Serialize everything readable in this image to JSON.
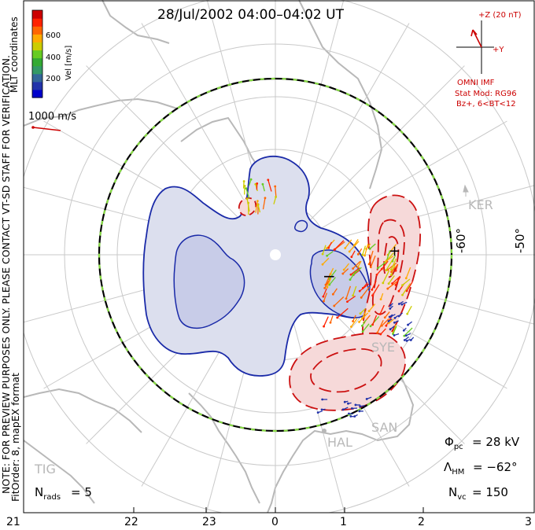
{
  "chart_data": {
    "type": "polar_convection_map",
    "title": "28/Jul/2002 04:00–04:02 UT",
    "side_notes": {
      "coordinates": "MLT coordinates",
      "preview": "NOTE: FOR PREVIEW PURPOSES ONLY. PLEASE CONTACT VT-SD STAFF FOR VERIFICATION.",
      "fit": "FitOrder: 8, mapEX format"
    },
    "colorbar": {
      "label": "Vel [m/s]",
      "ticks": [
        "600",
        "400",
        "200"
      ],
      "colors": [
        "#0000cc",
        "#2233aa",
        "#336699",
        "#339966",
        "#33aa33",
        "#66cc22",
        "#cccc00",
        "#ffaa00",
        "#ff6600",
        "#ff2200",
        "#cc0000"
      ]
    },
    "scale_vector": {
      "label": "1000 m/s",
      "color": "#cc0000"
    },
    "imf": {
      "z_label": "+Z (20 nT)",
      "y_label": "+Y",
      "source": "OMNI IMF",
      "model": "Stat Mod: RG96",
      "condition": "Bz+, 6<BT<12",
      "color": "#cc0000"
    },
    "latitude_labels": [
      "-60°",
      "-50°"
    ],
    "mlt_ticks": [
      "21",
      "22",
      "23",
      "0",
      "1",
      "2",
      "3"
    ],
    "stations": [
      "KER",
      "SYE",
      "HAL",
      "SAN",
      "TIG"
    ],
    "stats": {
      "phi_pc": {
        "symbol": "Φ",
        "sub": "pc",
        "value": "= 28 kV"
      },
      "lambda_hm": {
        "symbol": "Λ",
        "sub": "HM",
        "value": "= −62°"
      },
      "n_vc": {
        "symbol": "N",
        "sub": "vc",
        "value": "= 150"
      },
      "n_rads": {
        "symbol": "N",
        "sub": "rads",
        "value": "= 5"
      }
    },
    "cell_signs": [
      "−",
      "+"
    ],
    "colors": {
      "negative_contour": "#1a2aa8",
      "negative_fill": "#dcdfee",
      "negative_fill_inner": "#c8cce8",
      "positive_contour": "#cc1111",
      "positive_fill": "#f6d9d9",
      "boundary": "#000000",
      "boundary_dash": "#88dd44",
      "coast": "#b8b8b8"
    }
  }
}
